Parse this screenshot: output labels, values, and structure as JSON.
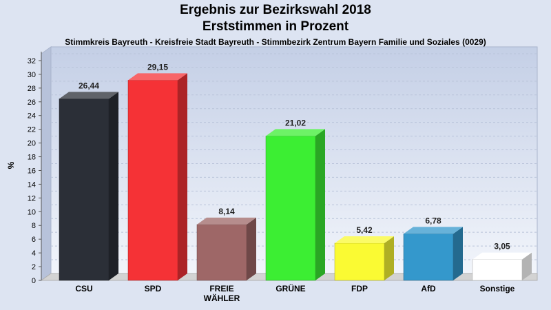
{
  "chart_data": {
    "type": "bar",
    "title": "Ergebnis zur Bezirkswahl 2018",
    "subtitle": "Erststimmen in Prozent",
    "caption": "Stimmkreis Bayreuth - Kreisfreie Stadt Bayreuth - Stimmbezirk Zentrum Bayern Familie und Soziales (0029)",
    "ylabel": "%",
    "ylim": [
      0,
      33
    ],
    "yticks": [
      0,
      2,
      4,
      6,
      8,
      10,
      12,
      14,
      16,
      18,
      20,
      22,
      24,
      26,
      28,
      30,
      32
    ],
    "grid": true,
    "categories": [
      "CSU",
      "SPD",
      "FREIE WÄHLER",
      "GRÜNE",
      "FDP",
      "AfD",
      "Sonstige"
    ],
    "category_lines": [
      [
        "CSU"
      ],
      [
        "SPD"
      ],
      [
        "FREIE",
        "WÄHLER"
      ],
      [
        "GRÜNE"
      ],
      [
        "FDP"
      ],
      [
        "AfD"
      ],
      [
        "Sonstige"
      ]
    ],
    "values": [
      26.44,
      29.15,
      8.14,
      21.02,
      5.42,
      6.78,
      3.05
    ],
    "value_labels": [
      "26,44",
      "29,15",
      "8,14",
      "21,02",
      "5,42",
      "6,78",
      "3,05"
    ],
    "colors": [
      "#2b2f37",
      "#f53236",
      "#9e6767",
      "#3cee33",
      "#fafa33",
      "#3498cc",
      "#ffffff"
    ]
  }
}
